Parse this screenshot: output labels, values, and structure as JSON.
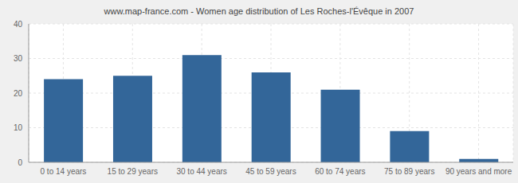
{
  "chart_data": {
    "type": "bar",
    "title": "www.map-france.com - Women age distribution of Les Roches-l'Évêque in 2007",
    "categories": [
      "0 to 14 years",
      "15 to 29 years",
      "30 to 44 years",
      "45 to 59 years",
      "60 to 74 years",
      "75 to 89 years",
      "90 years and more"
    ],
    "values": [
      24,
      25,
      31,
      26,
      21,
      9,
      1
    ],
    "color": "#336699",
    "ylim": [
      0,
      40
    ],
    "yticks": [
      0,
      10,
      20,
      30,
      40
    ],
    "grid": true
  }
}
